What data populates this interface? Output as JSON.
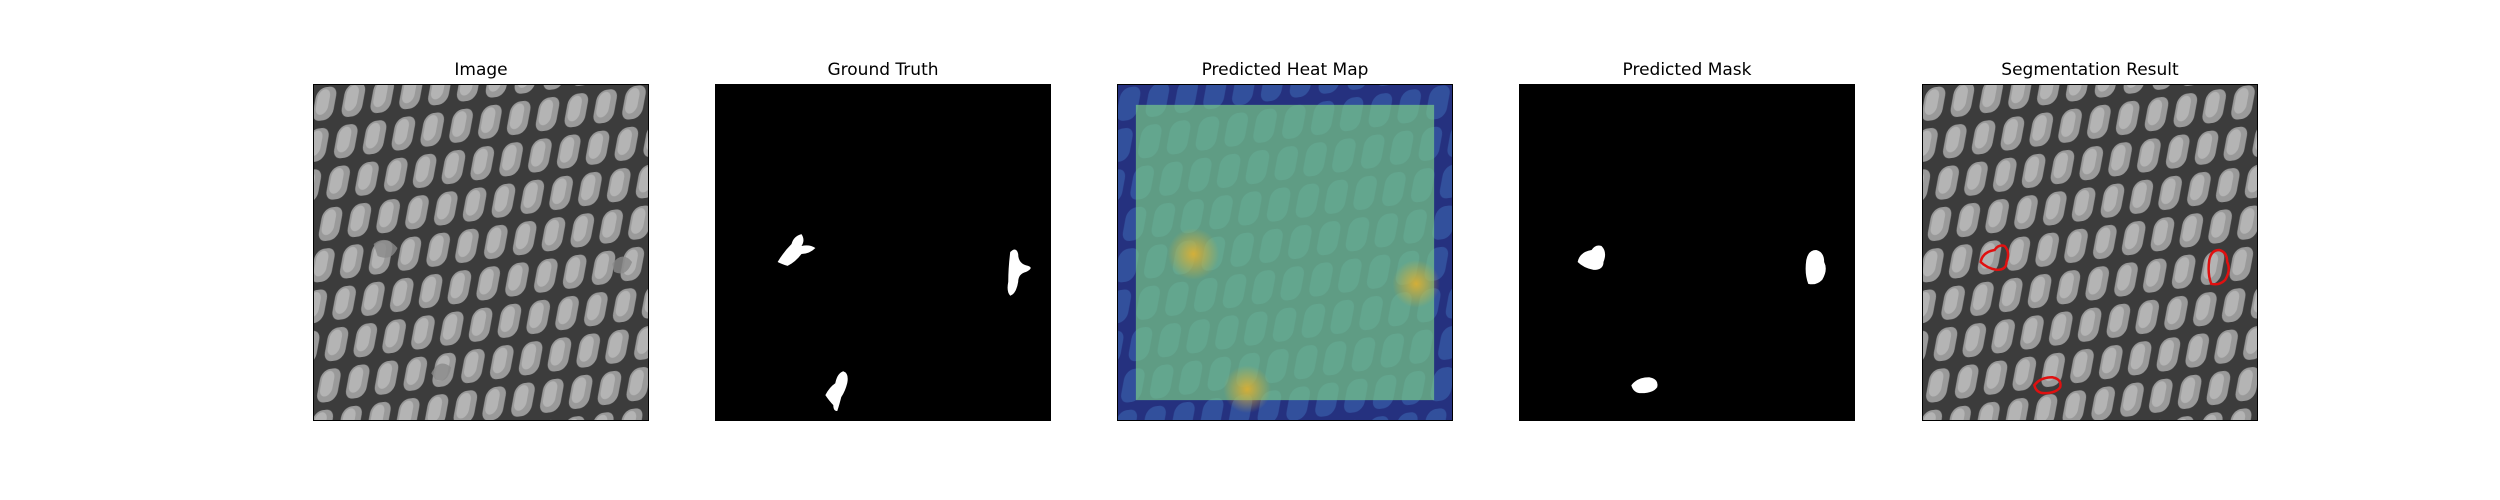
{
  "figure": {
    "panels": [
      {
        "id": "image",
        "title": "Image"
      },
      {
        "id": "ground-truth",
        "title": "Ground Truth"
      },
      {
        "id": "heatmap",
        "title": "Predicted Heat Map"
      },
      {
        "id": "pred-mask",
        "title": "Predicted Mask"
      },
      {
        "id": "segmentation",
        "title": "Segmentation Result"
      }
    ]
  },
  "colors": {
    "background": "#ffffff",
    "mesh_light": "#a6a6a6",
    "mesh_dark": "#3a3a3a",
    "mask_bg": "#000000",
    "mask_fg": "#ffffff",
    "heat_low": "#2c2a8c",
    "heat_mid": "#36a9a9",
    "heat_high": "#c8d24a",
    "contour": "#e01010"
  }
}
